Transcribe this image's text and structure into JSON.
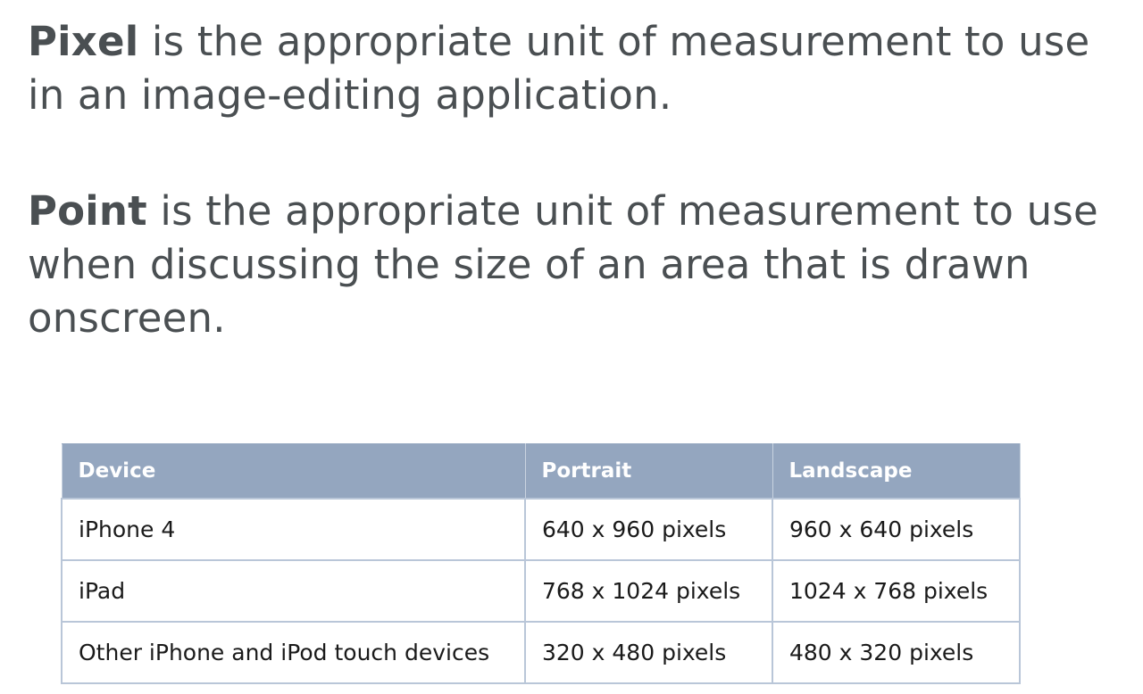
{
  "paragraphs": {
    "pixel": {
      "term": "Pixel",
      "text": " is the appropriate unit of measurement to use in an image-editing application."
    },
    "point": {
      "term": "Point",
      "text": " is the appropriate unit of measurement to use when discussing the size of an area that is drawn onscreen."
    }
  },
  "table": {
    "headers": [
      "Device",
      "Portrait",
      "Landscape"
    ],
    "rows": [
      [
        "iPhone 4",
        "640 x 960 pixels",
        "960 x 640 pixels"
      ],
      [
        "iPad",
        "768 x 1024 pixels",
        "1024 x 768 pixels"
      ],
      [
        "Other iPhone and iPod touch devices",
        "320 x 480 pixels",
        "480 x 320 pixels"
      ]
    ]
  },
  "colors": {
    "text": "#4a4f52",
    "header_bg": "#94a6bf",
    "border": "#b9c6d8"
  }
}
